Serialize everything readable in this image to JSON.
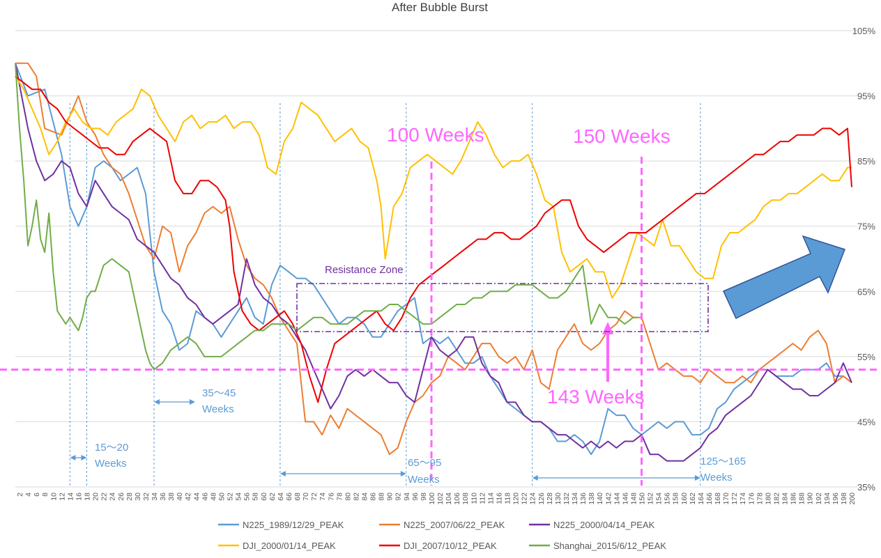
{
  "chart_data": {
    "type": "line",
    "title": "After Bubble Burst",
    "xlabel": "",
    "ylabel": "",
    "xlim": [
      1,
      200
    ],
    "ylim": [
      35,
      105
    ],
    "y_ticks": [
      35,
      45,
      55,
      65,
      75,
      85,
      95,
      105
    ],
    "y_tick_labels": [
      "35%",
      "45%",
      "55%",
      "65%",
      "75%",
      "85%",
      "95%",
      "105%"
    ],
    "x_tick_step": 2,
    "grid": "horizontal",
    "legend_position": "bottom",
    "series": [
      {
        "name": "N225_1989/12/29_PEAK",
        "color": "#5b9bd5",
        "x": [
          1,
          4,
          8,
          12,
          14,
          16,
          18,
          20,
          22,
          24,
          26,
          28,
          30,
          32,
          34,
          36,
          38,
          40,
          42,
          44,
          46,
          48,
          50,
          52,
          54,
          56,
          58,
          60,
          62,
          64,
          66,
          68,
          70,
          72,
          74,
          76,
          78,
          80,
          82,
          84,
          86,
          88,
          90,
          92,
          94,
          96,
          98,
          100,
          102,
          104,
          106,
          108,
          110,
          112,
          114,
          116,
          118,
          120,
          122,
          124,
          126,
          128,
          130,
          132,
          134,
          136,
          138,
          140,
          142,
          144,
          146,
          148,
          150,
          152,
          154,
          156,
          158,
          160,
          162,
          164,
          166,
          168,
          170,
          172,
          174,
          176,
          178,
          180,
          182,
          184,
          186,
          188,
          190,
          192,
          194,
          196,
          198,
          200
        ],
        "values": [
          100,
          95,
          96,
          86,
          78,
          75,
          78,
          84,
          85,
          84,
          82,
          83,
          84,
          80,
          68,
          62,
          60,
          56,
          57,
          62,
          61,
          60,
          58,
          60,
          62,
          64,
          61,
          60,
          66,
          69,
          68,
          67,
          67,
          66,
          64,
          62,
          60,
          61,
          61,
          60,
          58,
          58,
          60,
          62,
          63,
          64,
          57,
          58,
          57,
          58,
          56,
          54,
          54,
          55,
          52,
          50,
          48,
          47,
          46,
          45,
          45,
          44,
          42,
          42,
          43,
          42,
          40,
          42,
          47,
          46,
          46,
          44,
          43,
          44,
          45,
          44,
          45,
          45,
          43,
          43,
          44,
          47,
          48,
          50,
          51,
          52,
          53,
          53,
          52,
          52,
          52,
          53,
          53,
          53,
          54,
          52,
          52,
          51
        ]
      },
      {
        "name": "N225_2007/06/22_PEAK",
        "color": "#ed7d31",
        "x": [
          1,
          4,
          6,
          8,
          12,
          14,
          16,
          18,
          20,
          22,
          24,
          26,
          28,
          30,
          32,
          34,
          36,
          38,
          40,
          42,
          44,
          46,
          48,
          50,
          52,
          54,
          56,
          58,
          60,
          62,
          64,
          66,
          68,
          70,
          72,
          74,
          76,
          78,
          80,
          82,
          84,
          86,
          88,
          90,
          92,
          94,
          96,
          98,
          100,
          102,
          104,
          106,
          108,
          110,
          112,
          114,
          116,
          118,
          120,
          122,
          124,
          126,
          128,
          130,
          132,
          134,
          136,
          138,
          140,
          142,
          144,
          146,
          148,
          150,
          152,
          154,
          156,
          158,
          160,
          162,
          164,
          166,
          168,
          170,
          172,
          174,
          176,
          178,
          180,
          182,
          184,
          186,
          188,
          190,
          192,
          194,
          196,
          198,
          200
        ],
        "values": [
          100,
          100,
          98,
          90,
          89,
          92,
          95,
          91,
          89,
          86,
          84,
          83,
          80,
          76,
          72,
          70,
          75,
          74,
          68,
          72,
          74,
          77,
          78,
          77,
          78,
          73,
          69,
          67,
          66,
          64,
          61,
          59,
          57,
          45,
          45,
          43,
          46,
          44,
          47,
          46,
          45,
          44,
          43,
          40,
          41,
          45,
          48,
          49,
          51,
          52,
          55,
          54,
          53,
          55,
          57,
          57,
          55,
          54,
          55,
          53,
          56,
          51,
          50,
          56,
          58,
          60,
          57,
          56,
          57,
          59,
          60,
          62,
          61,
          61,
          57,
          53,
          54,
          53,
          52,
          52,
          51,
          53,
          52,
          51,
          51,
          52,
          51,
          53,
          54,
          55,
          56,
          57,
          56,
          58,
          59,
          57,
          51,
          52,
          51
        ]
      },
      {
        "name": "N225_2000/04/14_PEAK",
        "color": "#7030a0",
        "x": [
          1,
          4,
          6,
          8,
          10,
          12,
          14,
          16,
          18,
          20,
          22,
          24,
          26,
          28,
          30,
          32,
          34,
          36,
          38,
          40,
          42,
          44,
          46,
          48,
          50,
          52,
          54,
          56,
          58,
          60,
          62,
          64,
          66,
          68,
          70,
          72,
          74,
          76,
          78,
          80,
          82,
          84,
          86,
          88,
          90,
          92,
          94,
          96,
          98,
          100,
          102,
          104,
          106,
          108,
          110,
          112,
          114,
          116,
          118,
          120,
          122,
          124,
          126,
          128,
          130,
          132,
          134,
          136,
          138,
          140,
          142,
          144,
          146,
          148,
          150,
          152,
          154,
          156,
          158,
          160,
          162,
          164,
          166,
          168,
          170,
          172,
          174,
          176,
          178,
          180,
          182,
          184,
          186,
          188,
          190,
          192,
          194,
          196,
          198,
          200
        ],
        "values": [
          100,
          90,
          85,
          82,
          83,
          85,
          84,
          80,
          78,
          82,
          80,
          78,
          77,
          76,
          73,
          72,
          71,
          69,
          67,
          66,
          64,
          63,
          61,
          60,
          61,
          62,
          63,
          70,
          66,
          64,
          63,
          61,
          60,
          58,
          56,
          53,
          50,
          47,
          49,
          52,
          53,
          52,
          53,
          52,
          51,
          51,
          49,
          48,
          53,
          58,
          56,
          55,
          56,
          58,
          58,
          54,
          52,
          51,
          48,
          48,
          46,
          45,
          45,
          44,
          43,
          43,
          42,
          41,
          42,
          41,
          42,
          41,
          42,
          42,
          43,
          40,
          40,
          39,
          39,
          39,
          40,
          41,
          43,
          44,
          46,
          47,
          48,
          49,
          51,
          53,
          52,
          51,
          50,
          50,
          49,
          49,
          50,
          51,
          54,
          51
        ]
      },
      {
        "name": "DJI_2000/01/14_PEAK",
        "color": "#ffc000",
        "x": [
          1,
          3,
          5,
          7,
          9,
          11,
          13,
          15,
          17,
          19,
          21,
          23,
          25,
          27,
          29,
          31,
          33,
          35,
          37,
          39,
          41,
          43,
          45,
          47,
          49,
          51,
          53,
          55,
          57,
          59,
          61,
          63,
          65,
          67,
          69,
          71,
          73,
          75,
          77,
          79,
          81,
          83,
          85,
          87,
          88,
          89,
          90,
          91,
          93,
          95,
          97,
          99,
          101,
          103,
          105,
          107,
          109,
          111,
          113,
          115,
          117,
          119,
          121,
          123,
          125,
          127,
          129,
          131,
          133,
          135,
          137,
          139,
          141,
          143,
          145,
          147,
          149,
          151,
          153,
          155,
          157,
          159,
          161,
          163,
          165,
          167,
          169,
          171,
          173,
          175,
          177,
          179,
          181,
          183,
          185,
          187,
          189,
          191,
          193,
          195,
          197,
          199,
          200
        ],
        "values": [
          98,
          96,
          93,
          90,
          86,
          88,
          91,
          93,
          91,
          90,
          90,
          89,
          91,
          92,
          93,
          96,
          95,
          92,
          90,
          88,
          91,
          92,
          90,
          91,
          91,
          92,
          90,
          91,
          91,
          89,
          84,
          83,
          88,
          90,
          94,
          93,
          92,
          90,
          88,
          89,
          90,
          88,
          87,
          82,
          78,
          70,
          74,
          78,
          80,
          84,
          85,
          86,
          85,
          84,
          83,
          85,
          88,
          91,
          89,
          86,
          84,
          85,
          85,
          86,
          83,
          79,
          78,
          71,
          68,
          69,
          70,
          68,
          68,
          64,
          66,
          70,
          74,
          73,
          72,
          76,
          72,
          72,
          70,
          68,
          67,
          67,
          72,
          74,
          74,
          75,
          76,
          78,
          79,
          79,
          80,
          80,
          81,
          82,
          83,
          82,
          82,
          84,
          84
        ]
      },
      {
        "name": "DJI_2007/10/12_PEAK",
        "color": "#ee0000",
        "x": [
          1,
          3,
          5,
          7,
          9,
          11,
          13,
          15,
          17,
          19,
          21,
          23,
          25,
          27,
          29,
          31,
          33,
          35,
          37,
          39,
          41,
          43,
          45,
          47,
          49,
          51,
          52,
          53,
          55,
          57,
          59,
          61,
          63,
          65,
          67,
          69,
          71,
          73,
          75,
          77,
          79,
          81,
          83,
          85,
          87,
          89,
          91,
          93,
          95,
          97,
          99,
          101,
          103,
          105,
          107,
          109,
          111,
          113,
          115,
          117,
          119,
          121,
          123,
          125,
          127,
          129,
          131,
          133,
          135,
          137,
          139,
          141,
          143,
          145,
          147,
          149,
          151,
          153,
          155,
          157,
          159,
          161,
          163,
          165,
          167,
          169,
          171,
          173,
          175,
          177,
          179,
          181,
          183,
          185,
          187,
          189,
          191,
          193,
          195,
          197,
          199,
          200
        ],
        "values": [
          98,
          97,
          96,
          96,
          94,
          93,
          91,
          90,
          89,
          88,
          87,
          87,
          86,
          86,
          88,
          89,
          90,
          89,
          88,
          82,
          80,
          80,
          82,
          82,
          81,
          79,
          75,
          68,
          62,
          60,
          59,
          60,
          61,
          62,
          60,
          57,
          52,
          48,
          53,
          57,
          58,
          59,
          60,
          61,
          62,
          60,
          59,
          61,
          64,
          66,
          67,
          68,
          69,
          70,
          71,
          72,
          73,
          73,
          74,
          74,
          73,
          73,
          74,
          75,
          77,
          78,
          79,
          79,
          75,
          73,
          72,
          71,
          72,
          73,
          74,
          74,
          74,
          75,
          76,
          77,
          78,
          79,
          80,
          80,
          81,
          82,
          83,
          84,
          85,
          86,
          86,
          87,
          88,
          88,
          89,
          89,
          89,
          90,
          90,
          89,
          90,
          81
        ]
      },
      {
        "name": "Shanghai_2015/6/12_PEAK",
        "color": "#70ad47",
        "x": [
          1,
          2,
          3,
          4,
          5,
          6,
          7,
          8,
          9,
          10,
          11,
          12,
          13,
          14,
          15,
          16,
          17,
          18,
          19,
          20,
          22,
          24,
          26,
          28,
          30,
          32,
          33,
          34,
          36,
          38,
          40,
          42,
          44,
          46,
          48,
          50,
          52,
          54,
          56,
          58,
          60,
          62,
          64,
          66,
          68,
          70,
          72,
          74,
          76,
          78,
          80,
          82,
          84,
          86,
          88,
          90,
          92,
          94,
          96,
          98,
          100,
          102,
          104,
          106,
          108,
          110,
          112,
          114,
          116,
          118,
          120,
          122,
          124,
          126,
          128,
          130,
          132,
          134,
          136,
          138,
          140,
          142,
          144,
          146,
          148,
          149
        ],
        "values": [
          100,
          90,
          82,
          72,
          75,
          79,
          73,
          71,
          77,
          68,
          62,
          61,
          60,
          61,
          60,
          59,
          61,
          64,
          65,
          65,
          69,
          70,
          69,
          68,
          62,
          56,
          54,
          53,
          54,
          56,
          57,
          58,
          57,
          55,
          55,
          55,
          56,
          57,
          58,
          59,
          59,
          60,
          60,
          60,
          59,
          60,
          61,
          61,
          60,
          60,
          60,
          61,
          62,
          62,
          62,
          63,
          63,
          62,
          61,
          60,
          60,
          61,
          62,
          63,
          63,
          64,
          64,
          65,
          65,
          65,
          66,
          66,
          66,
          65,
          64,
          64,
          65,
          67,
          69,
          60,
          63,
          61,
          61,
          60,
          61,
          61
        ]
      }
    ],
    "annotations": {
      "resistance_zone": "Resistance Zone",
      "weeks_100": "100 Weeks",
      "weeks_150": "150 Weeks",
      "weeks_143": "143 Weeks",
      "range_15_20": "15～20",
      "range_35_45": "35～45",
      "range_65_95": "65～95",
      "range_125_165": "125～165",
      "weeks_word": "Weeks"
    }
  },
  "colors": {
    "annotation_pink": "#ff66ff",
    "range_blue": "#5b9bd5",
    "resistance_purple": "#7030a0",
    "arrow_fill": "#5b9bd5",
    "arrow_stroke": "#2f5597",
    "grid": "#d9d9d9",
    "text": "#595959"
  }
}
